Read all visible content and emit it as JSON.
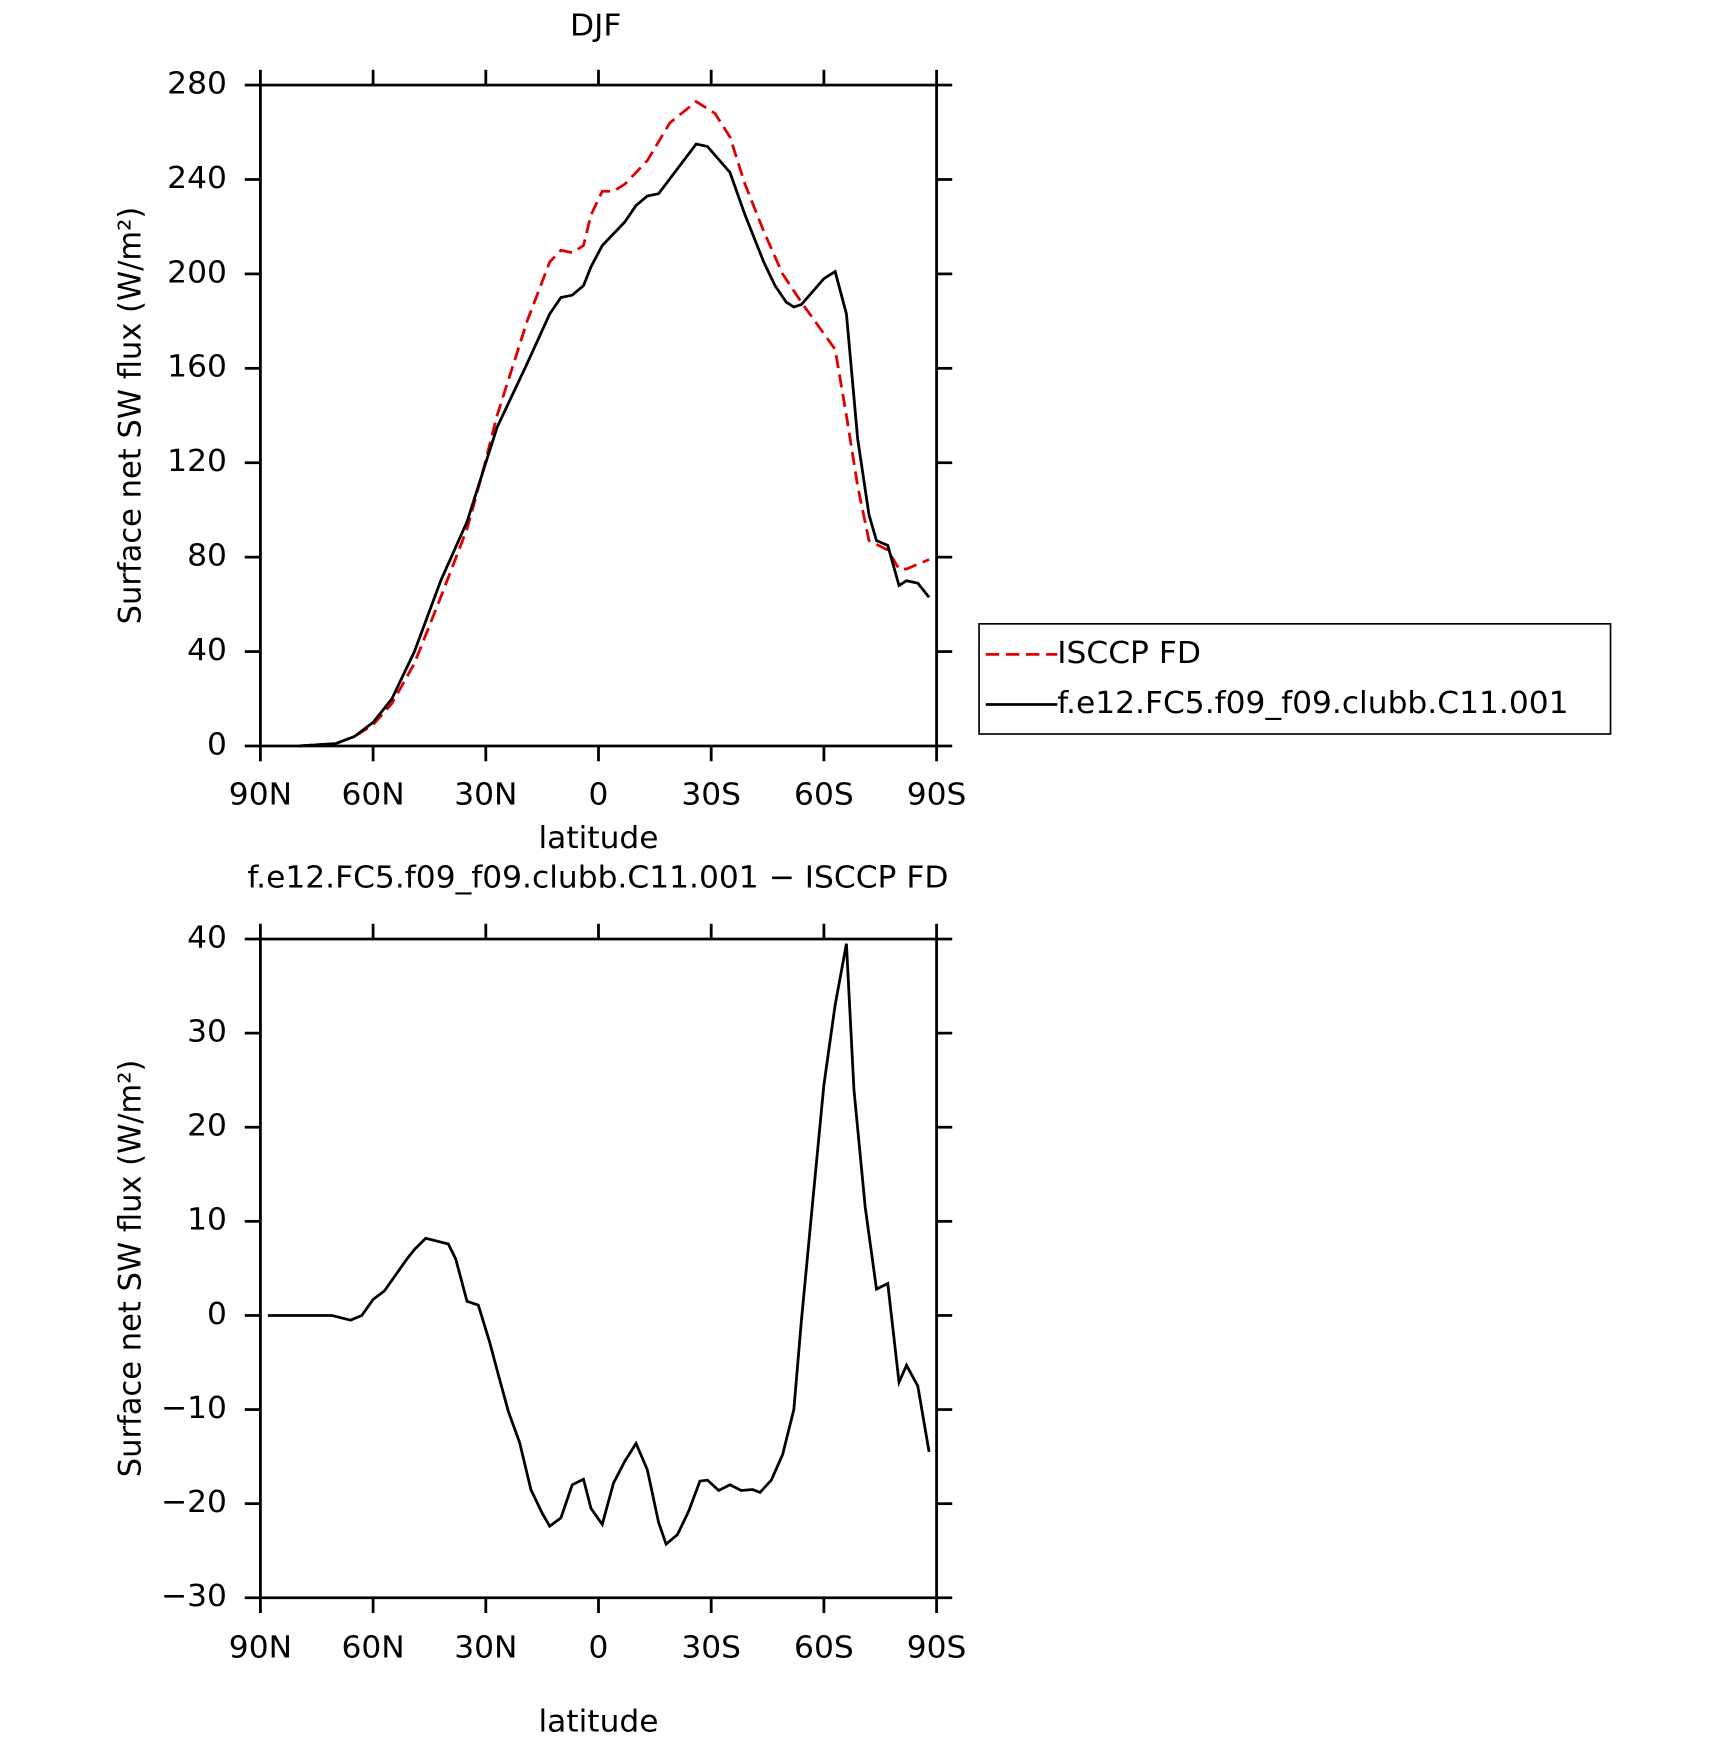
{
  "chart_data": [
    {
      "type": "line",
      "title": "DJF",
      "xlabel": "latitude",
      "ylabel": "Surface net SW flux (W/m²)",
      "xlim": [
        90,
        -90
      ],
      "xticks": [
        {
          "value": 90,
          "label": "90N"
        },
        {
          "value": 60,
          "label": "60N"
        },
        {
          "value": 30,
          "label": "30N"
        },
        0,
        {
          "value": -30,
          "label": "30S"
        },
        {
          "value": -60,
          "label": "60S"
        },
        {
          "value": -90,
          "label": "90S"
        }
      ],
      "ylim": [
        0,
        280
      ],
      "yticks": [
        0,
        40,
        80,
        120,
        160,
        200,
        240,
        280
      ],
      "legend": "right",
      "series": [
        {
          "name": "ISCCP FD",
          "color": "#e00000",
          "linestyle": "dashed",
          "x": [
            80,
            70,
            65,
            60,
            55,
            49,
            42,
            35,
            31,
            27,
            19,
            13,
            10,
            7,
            4,
            2,
            -1,
            -4,
            -7,
            -13,
            -19,
            -26,
            -31,
            -35,
            -39,
            -44,
            -49,
            -54,
            -63,
            -66,
            -69,
            -72,
            -77,
            -80,
            -82,
            -88
          ],
          "values": [
            0,
            1,
            4,
            9,
            18,
            35,
            63,
            92,
            115,
            140,
            180,
            205,
            210,
            209,
            212,
            225,
            235,
            235,
            238,
            248,
            264,
            273,
            268,
            258,
            238,
            218,
            200,
            188,
            168,
            140,
            110,
            87,
            83,
            75,
            75,
            79
          ]
        },
        {
          "name": "f.e12.FC5.f09_f09.clubb.C11.001",
          "color": "#000000",
          "linestyle": "solid",
          "x": [
            80,
            70,
            65,
            60,
            55,
            49,
            42,
            35,
            31,
            27,
            19,
            13,
            10,
            7,
            4,
            2,
            -1,
            -7,
            -10,
            -13,
            -16,
            -26,
            -29,
            -35,
            -39,
            -44,
            -47,
            -50,
            -52,
            -54,
            -60,
            -63,
            -66,
            -69,
            -72,
            -74,
            -77,
            -80,
            -82,
            -85,
            -88
          ],
          "values": [
            0,
            1,
            4,
            10,
            20,
            40,
            70,
            95,
            115,
            135,
            162,
            183,
            190,
            191,
            195,
            203,
            212,
            222,
            229,
            233,
            234,
            255,
            254,
            243,
            225,
            205,
            195,
            188,
            186,
            187,
            198,
            201,
            183,
            130,
            98,
            87,
            85,
            68,
            70,
            69,
            63
          ]
        }
      ]
    },
    {
      "type": "line",
      "title": "f.e12.FC5.f09_f09.clubb.C11.001 − ISCCP FD",
      "xlabel": "latitude",
      "ylabel": "Surface net SW flux (W/m²)",
      "xlim": [
        90,
        -90
      ],
      "xticks": [
        {
          "value": 90,
          "label": "90N"
        },
        {
          "value": 60,
          "label": "60N"
        },
        {
          "value": 30,
          "label": "30N"
        },
        0,
        {
          "value": -30,
          "label": "30S"
        },
        {
          "value": -60,
          "label": "60S"
        },
        {
          "value": -90,
          "label": "90S"
        }
      ],
      "ylim": [
        -30,
        40
      ],
      "yticks": [
        {
          "value": -30,
          "label": "−30"
        },
        {
          "value": -20,
          "label": "−20"
        },
        {
          "value": -10,
          "label": "−10"
        },
        0,
        10,
        20,
        30,
        40
      ],
      "series": [
        {
          "color": "#000000",
          "linestyle": "solid",
          "x": [
            88,
            71,
            66,
            63,
            60,
            57,
            51,
            49,
            46,
            40,
            38,
            35,
            32,
            29,
            27,
            24,
            21,
            18,
            15,
            13,
            10,
            7,
            4,
            2,
            -1,
            -4,
            -7,
            -10,
            -13,
            -16,
            -18,
            -21,
            -24,
            -27,
            -29,
            -32,
            -35,
            -38,
            -41,
            -43,
            -46,
            -49,
            -52,
            -54,
            -57,
            -60,
            -63,
            -66,
            -68,
            -71,
            -74,
            -77,
            -80,
            -82,
            -85,
            -88
          ],
          "values": [
            0,
            0,
            -0.5,
            0,
            1.7,
            2.6,
            6,
            7,
            8.2,
            7.6,
            6,
            1.5,
            1.1,
            -2.8,
            -5.8,
            -10.2,
            -13.5,
            -18.5,
            -21,
            -22.4,
            -21.5,
            -18,
            -17.4,
            -20.5,
            -22.2,
            -17.8,
            -15.5,
            -13.6,
            -16.4,
            -22,
            -24.3,
            -23.3,
            -20.8,
            -17.6,
            -17.5,
            -18.6,
            -18,
            -18.6,
            -18.5,
            -18.8,
            -17.5,
            -14.8,
            -10,
            -0.6,
            12,
            24.5,
            33,
            39.5,
            24,
            11.5,
            2.8,
            3.4,
            -7.1,
            -5.3,
            -7.5,
            -14.5
          ]
        }
      ]
    }
  ]
}
